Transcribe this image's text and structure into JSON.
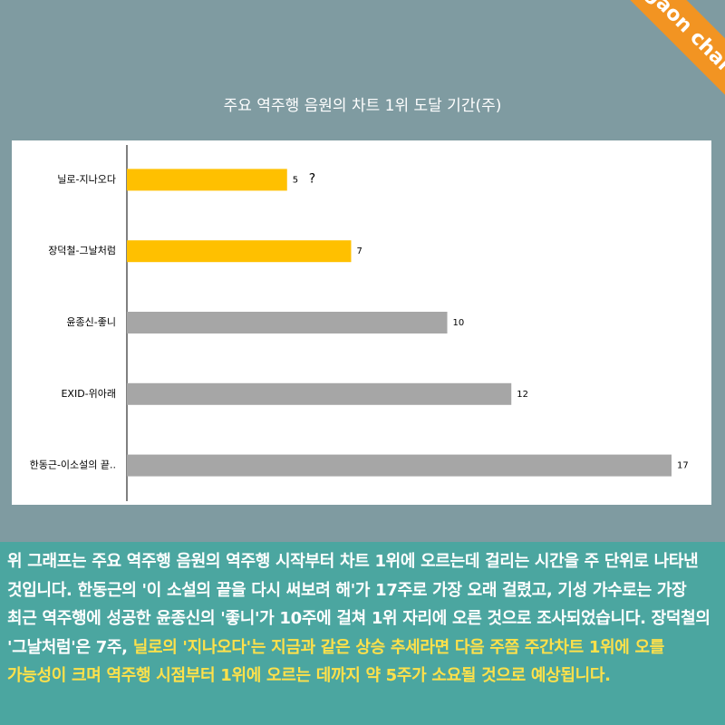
{
  "chart_data": {
    "type": "bar_horizontal",
    "title": "주요 역주행 음원의 차트 1위 도달 기간(주)",
    "categories": [
      "닐로-지나오다",
      "장덕철-그날처럼",
      "윤종신-좋니",
      "EXID-위아래",
      "한동근-이소설의 끝.."
    ],
    "values": [
      5,
      7,
      10,
      12,
      17
    ],
    "colors": [
      "#ffc000",
      "#ffc000",
      "#a6a6a6",
      "#a6a6a6",
      "#a6a6a6"
    ],
    "xlim": [
      0,
      17
    ],
    "annotation": "?"
  },
  "corner_label": "gaon chart",
  "caption": {
    "text": "위 그래프는 주요 역주행 음원의 역주행 시작부터 차트 1위에 오르는데 걸리는 시간을 주 단위로 나타낸 것입니다. 한동근의 '이 소설의 끝을 다시 써보려 해'가 17주로 가장 오래 걸렸고, 기성 가수로는 가장 최근 역주행에 성공한 윤종신의 '좋니'가 10주에 걸쳐 1위 자리에 오른 것으로 조사되었습니다.  장덕철의 '그날처럼'은 7주, ",
    "highlight": "닐로의 '지나오다'는 지금과 같은 상승 추세라면 다음 주쯤 주간차트 1위에 오를 가능성이 크며 역주행 시점부터 1위에 오르는 데까지 약 5주가 소요될 것으로 예상됩니다."
  }
}
